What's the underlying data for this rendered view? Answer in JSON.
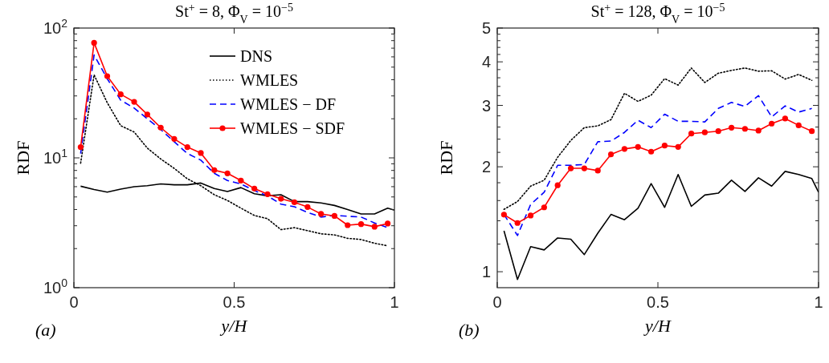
{
  "chart_data": [
    {
      "type": "line",
      "title": "St$^{+}$ = 8,  Φ$_{V}$ = 10$^{−5}$",
      "xlabel": "y/H",
      "ylabel": "RDF",
      "log": "y",
      "legend": "top right",
      "grid": false,
      "x": [
        0.021,
        0.063,
        0.104,
        0.146,
        0.188,
        0.229,
        0.271,
        0.313,
        0.354,
        0.396,
        0.438,
        0.479,
        0.521,
        0.563,
        0.604,
        0.646,
        0.688,
        0.729,
        0.771,
        0.813,
        0.854,
        0.896,
        0.938,
        0.979
      ],
      "xlim": [
        0,
        1
      ],
      "xticks": [
        0,
        0.5,
        1
      ],
      "ylim": [
        1,
        100
      ],
      "yticks": [
        {
          "value": 1,
          "label": "10$^{0}$"
        },
        {
          "value": 2,
          "label": null
        },
        {
          "value": 3,
          "label": null
        },
        {
          "value": 4,
          "label": null
        },
        {
          "value": 5,
          "label": null
        },
        {
          "value": 6,
          "label": null
        },
        {
          "value": 7,
          "label": null
        },
        {
          "value": 8,
          "label": null
        },
        {
          "value": 9,
          "label": null
        },
        {
          "value": 10,
          "label": "10$^{1}$"
        },
        {
          "value": 20,
          "label": null
        },
        {
          "value": 30,
          "label": null
        },
        {
          "value": 40,
          "label": null
        },
        {
          "value": 50,
          "label": null
        },
        {
          "value": 60,
          "label": null
        },
        {
          "value": 70,
          "label": null
        },
        {
          "value": 80,
          "label": null
        },
        {
          "value": 90,
          "label": null
        },
        {
          "value": 100,
          "label": "10$^{2}$"
        }
      ],
      "annotations": [
        "(a)"
      ],
      "series": [
        {
          "name": "DNS",
          "color": "#000000",
          "line_style": "solid",
          "marker": "none",
          "x": [
            0.021,
            0.063,
            0.104,
            0.146,
            0.188,
            0.229,
            0.271,
            0.313,
            0.354,
            0.396,
            0.438,
            0.479,
            0.521,
            0.563,
            0.604,
            0.646,
            0.688,
            0.729,
            0.771,
            0.813,
            0.854,
            0.896,
            0.938,
            0.979,
            1.0
          ],
          "values": [
            6.05,
            5.7,
            5.45,
            5.75,
            6.0,
            6.1,
            6.3,
            6.2,
            6.2,
            6.4,
            5.8,
            5.5,
            5.9,
            5.3,
            5.1,
            5.2,
            4.6,
            4.6,
            4.5,
            4.3,
            4.0,
            3.7,
            3.7,
            4.1,
            3.95
          ]
        },
        {
          "name": "WMLES",
          "color": "#000000",
          "line_style": "dotted",
          "marker": "none",
          "values": [
            9.1,
            43.6,
            26.6,
            17.7,
            15.8,
            11.9,
            9.8,
            8.3,
            6.9,
            6.1,
            5.2,
            4.7,
            4.1,
            3.6,
            3.4,
            2.8,
            2.9,
            2.75,
            2.6,
            2.55,
            2.4,
            2.35,
            2.2,
            2.1
          ]
        },
        {
          "name": "WMLES − DF",
          "color": "#0000ff",
          "line_style": "dashed",
          "marker": "none",
          "values": [
            10.8,
            62,
            40.7,
            27.8,
            24.2,
            20,
            16.5,
            13.3,
            10.8,
            9.6,
            7.6,
            6.7,
            6.3,
            5.6,
            5.1,
            4.4,
            4.2,
            3.8,
            3.5,
            3.6,
            3.55,
            3.5,
            3.15,
            2.9
          ]
        },
        {
          "name": "WMLES − SDF",
          "color": "#ff0000",
          "line_style": "solid",
          "marker": "circle",
          "values": [
            12.1,
            77,
            42.6,
            30.9,
            27,
            21.6,
            17.1,
            14.0,
            12.1,
            10.9,
            8.04,
            7.6,
            6.69,
            5.8,
            5.25,
            4.84,
            4.55,
            4.18,
            3.7,
            3.57,
            3.03,
            3.09,
            2.95,
            3.12
          ]
        }
      ]
    },
    {
      "type": "line",
      "title": "St$^{+}$ = 128,  Φ$_{V}$ = 10$^{−5}$",
      "xlabel": "y/H",
      "ylabel": "RDF",
      "log": "y",
      "grid": false,
      "x": [
        0.021,
        0.063,
        0.104,
        0.146,
        0.188,
        0.229,
        0.271,
        0.313,
        0.354,
        0.396,
        0.438,
        0.479,
        0.521,
        0.563,
        0.604,
        0.646,
        0.688,
        0.729,
        0.771,
        0.813,
        0.854,
        0.896,
        0.938,
        0.979
      ],
      "xlim": [
        0,
        1
      ],
      "xticks": [
        0,
        0.5,
        1
      ],
      "ylim": [
        0.9,
        5
      ],
      "yticks": [
        1,
        {
          "value": 1.2,
          "label": null
        },
        {
          "value": 1.4,
          "label": null
        },
        {
          "value": 1.6,
          "label": null
        },
        {
          "value": 1.8,
          "label": null
        },
        2,
        {
          "value": 2.2,
          "label": null
        },
        {
          "value": 2.4,
          "label": null
        },
        {
          "value": 2.6,
          "label": null
        },
        {
          "value": 2.8,
          "label": null
        },
        3,
        {
          "value": 3.2,
          "label": null
        },
        {
          "value": 3.4,
          "label": null
        },
        {
          "value": 3.6,
          "label": null
        },
        {
          "value": 3.8,
          "label": null
        },
        4,
        {
          "value": 4.2,
          "label": null
        },
        {
          "value": 4.4,
          "label": null
        },
        {
          "value": 4.6,
          "label": null
        },
        {
          "value": 4.8,
          "label": null
        },
        5
      ],
      "annotations": [
        "(b)"
      ],
      "series": [
        {
          "color": "#000000",
          "line_style": "solid",
          "marker": "none",
          "x": [
            0.021,
            0.063,
            0.104,
            0.146,
            0.188,
            0.229,
            0.271,
            0.313,
            0.354,
            0.396,
            0.438,
            0.479,
            0.521,
            0.563,
            0.604,
            0.646,
            0.688,
            0.729,
            0.771,
            0.813,
            0.854,
            0.896,
            0.938,
            0.979,
            1.0
          ],
          "values": [
            1.31,
            0.95,
            1.18,
            1.155,
            1.25,
            1.24,
            1.12,
            1.29,
            1.46,
            1.41,
            1.52,
            1.79,
            1.53,
            1.9,
            1.54,
            1.66,
            1.68,
            1.83,
            1.7,
            1.86,
            1.76,
            1.94,
            1.9,
            1.85,
            1.69
          ]
        },
        {
          "color": "#000000",
          "line_style": "dotted",
          "marker": "none",
          "values": [
            1.51,
            1.59,
            1.76,
            1.83,
            2.13,
            2.38,
            2.59,
            2.62,
            2.73,
            3.25,
            3.08,
            3.21,
            3.58,
            3.43,
            3.84,
            3.49,
            3.71,
            3.78,
            3.84,
            3.76,
            3.77,
            3.57,
            3.68,
            3.54
          ]
        },
        {
          "color": "#0000ff",
          "line_style": "dashed",
          "marker": "none",
          "values": [
            1.46,
            1.27,
            1.56,
            1.69,
            2.02,
            2.02,
            2.03,
            2.36,
            2.37,
            2.51,
            2.72,
            2.59,
            2.83,
            2.7,
            2.7,
            2.69,
            2.94,
            3.06,
            2.98,
            3.2,
            2.78,
            2.99,
            2.87,
            2.94
          ]
        },
        {
          "color": "#ff0000",
          "line_style": "solid",
          "marker": "circle",
          "values": [
            1.458,
            1.38,
            1.45,
            1.53,
            1.77,
            1.98,
            1.98,
            1.95,
            2.17,
            2.25,
            2.28,
            2.21,
            2.3,
            2.28,
            2.49,
            2.51,
            2.53,
            2.59,
            2.57,
            2.54,
            2.66,
            2.75,
            2.63,
            2.53
          ]
        }
      ]
    }
  ]
}
